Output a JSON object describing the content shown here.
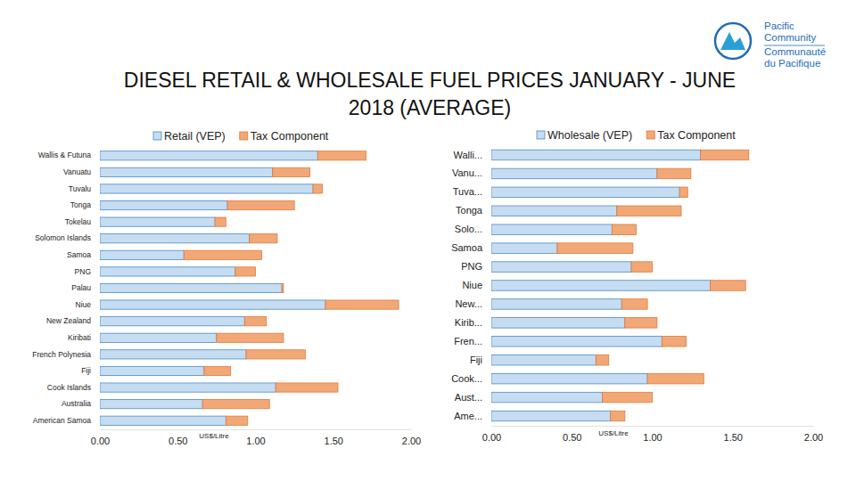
{
  "title": [
    "DIESEL RETAIL & WHOLESALE FUEL PRICES JANUARY - JUNE",
    "2018 (AVERAGE)"
  ],
  "logo_text": [
    "Pacific",
    "Community",
    "Communauté",
    "du Pacifique"
  ],
  "chart_data": [
    {
      "type": "bar",
      "orientation": "horizontal",
      "stacked": true,
      "legend": "top",
      "grid": false,
      "xlabel": "US$/Litre",
      "categories": [
        "Wallis & Futuna",
        "Vanuatu",
        "Tuvalu",
        "Tonga",
        "Tokelau",
        "Solomon Islands",
        "Samoa",
        "PNG",
        "Palau",
        "Niue",
        "New Zealand",
        "Kiribati",
        "French Polynesia",
        "Fiji",
        "Cook Islands",
        "Australia",
        "American Samoa"
      ],
      "series": [
        {
          "name": "Retail (VEP)",
          "color": "#c6dcf1",
          "values": [
            1.4,
            1.11,
            1.37,
            0.82,
            0.74,
            0.96,
            0.54,
            0.87,
            1.17,
            1.45,
            0.93,
            0.75,
            0.94,
            0.67,
            1.13,
            0.66,
            0.81
          ]
        },
        {
          "name": "Tax Component",
          "color": "#f2a776",
          "values": [
            0.31,
            0.24,
            0.06,
            0.43,
            0.07,
            0.18,
            0.5,
            0.13,
            0.01,
            0.47,
            0.14,
            0.43,
            0.38,
            0.17,
            0.4,
            0.43,
            0.14
          ]
        }
      ],
      "xlim": [
        0,
        2
      ],
      "xticks": [
        {
          "value": 0,
          "label": "0.00"
        },
        {
          "value": 0.5,
          "label": "0.50"
        },
        {
          "value": 1,
          "label": "1.00"
        },
        {
          "value": 1.5,
          "label": "1.50"
        },
        {
          "value": 2,
          "label": "2.00"
        }
      ]
    },
    {
      "type": "bar",
      "orientation": "horizontal",
      "stacked": true,
      "legend": "top",
      "grid": false,
      "xlabel": "US$/Litre",
      "categories": [
        "Walli...",
        "Vanu...",
        "Tuva...",
        "Tonga",
        "Solo...",
        "Samoa",
        "PNG",
        "Niue",
        "New...",
        "Kirib...",
        "Fren...",
        "Fiji",
        "Cook...",
        "Aust...",
        "Ame..."
      ],
      "series": [
        {
          "name": "Wholesale (VEP)",
          "color": "#c6dcf1",
          "values": [
            1.3,
            1.03,
            1.17,
            0.78,
            0.75,
            0.41,
            0.87,
            1.36,
            0.81,
            0.83,
            1.06,
            0.65,
            0.97,
            0.69,
            0.74
          ]
        },
        {
          "name": "Tax Component",
          "color": "#f2a776",
          "values": [
            0.3,
            0.21,
            0.05,
            0.4,
            0.15,
            0.47,
            0.13,
            0.22,
            0.16,
            0.2,
            0.15,
            0.08,
            0.35,
            0.31,
            0.09
          ]
        }
      ],
      "xlim": [
        0,
        2
      ],
      "xticks": [
        {
          "value": 0,
          "label": "0.00"
        },
        {
          "value": 0.5,
          "label": "0.50"
        },
        {
          "value": 1,
          "label": "1.00"
        },
        {
          "value": 1.5,
          "label": "1.50"
        },
        {
          "value": 2,
          "label": "2.00"
        }
      ]
    }
  ]
}
